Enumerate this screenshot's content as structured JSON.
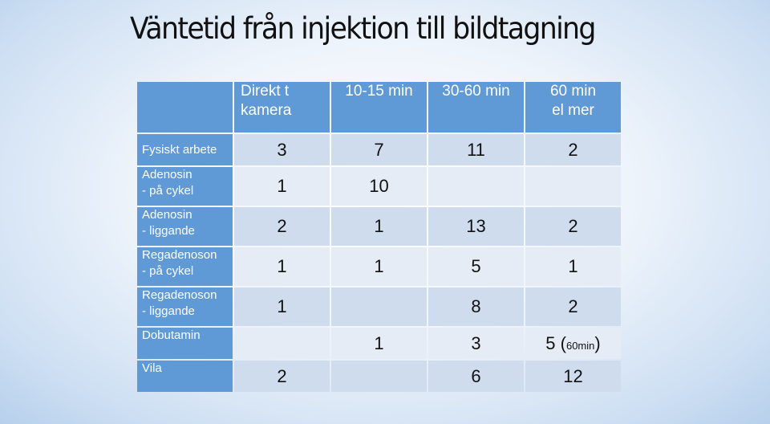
{
  "title": "Väntetid från injektion till bildtagning",
  "table": {
    "headers": [
      "Direkt t kamera",
      "10-15 min",
      "30-60 min",
      "60 min el mer"
    ],
    "headers_lines": [
      [
        "Direkt t",
        "kamera"
      ],
      [
        "10-15 min"
      ],
      [
        "30-60 min"
      ],
      [
        "60 min",
        "el mer"
      ]
    ],
    "rows": [
      {
        "label_lines": [
          "Fysiskt arbete"
        ],
        "values": [
          "3",
          "7",
          "11",
          "2"
        ]
      },
      {
        "label_lines": [
          "Adenosin",
          "- på cykel"
        ],
        "values": [
          "1",
          "10",
          "",
          ""
        ]
      },
      {
        "label_lines": [
          "Adenosin",
          "- liggande"
        ],
        "values": [
          "2",
          "1",
          "13",
          "2"
        ]
      },
      {
        "label_lines": [
          "Regadenoson",
          "- på cykel"
        ],
        "values": [
          "1",
          "1",
          "5",
          "1"
        ]
      },
      {
        "label_lines": [
          "Regadenoson",
          "- liggande"
        ],
        "values": [
          "1",
          "",
          "8",
          "2"
        ]
      },
      {
        "label_lines": [
          "Dobutamin"
        ],
        "values": [
          "",
          "1",
          "3",
          "5"
        ],
        "last_note": "60min"
      },
      {
        "label_lines": [
          "Vila"
        ],
        "values": [
          "2",
          "",
          "6",
          "12"
        ]
      }
    ]
  }
}
